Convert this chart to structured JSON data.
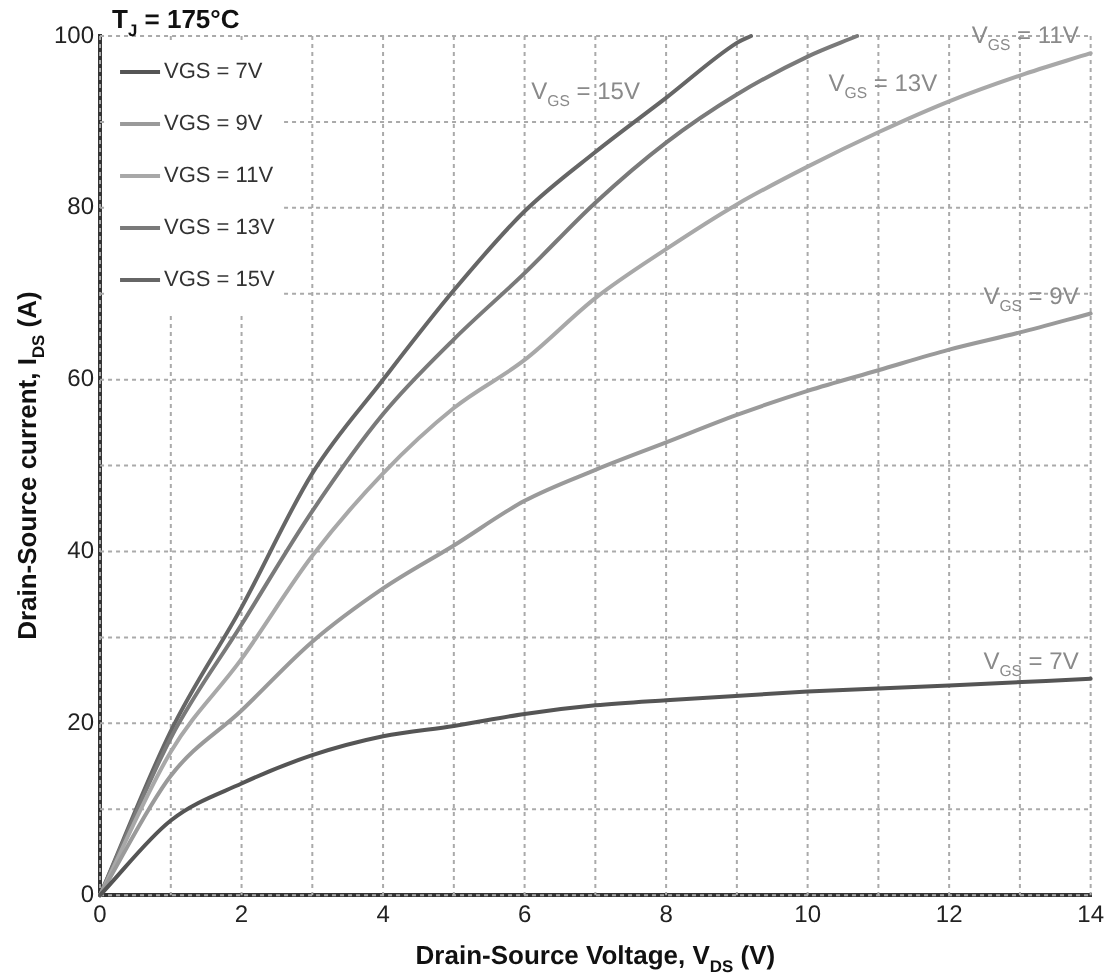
{
  "chart_data": {
    "type": "line",
    "xlabel": "Drain-Source Voltage, V$_{DS}$ (V)",
    "ylabel": "Drain-Source current, I$_{DS}$ (A)",
    "xlim": [
      0,
      14
    ],
    "ylim": [
      0,
      100
    ],
    "xticks": [
      0,
      {
        "value": 1,
        "label": null
      },
      2,
      {
        "value": 3,
        "label": null
      },
      4,
      {
        "value": 5,
        "label": null
      },
      6,
      {
        "value": 7,
        "label": null
      },
      8,
      {
        "value": 9,
        "label": null
      },
      10,
      {
        "value": 11,
        "label": null
      },
      12,
      {
        "value": 13,
        "label": null
      },
      14
    ],
    "yticks": [
      0,
      {
        "value": 10,
        "label": null
      },
      20,
      {
        "value": 30,
        "label": null
      },
      40,
      {
        "value": 50,
        "label": null
      },
      60,
      {
        "value": 70,
        "label": null
      },
      80,
      {
        "value": 90,
        "label": null
      },
      100
    ],
    "grid": true,
    "legend": "top left",
    "marker": "none",
    "line_style": "solid",
    "series": [
      {
        "name": "VGS = 7V",
        "color": "#555555",
        "x": [
          0,
          1,
          2,
          3,
          4,
          5,
          6,
          7,
          8,
          10,
          12,
          14
        ],
        "values": [
          0,
          8.7,
          13,
          16.3,
          18.5,
          19.7,
          21.1,
          22.1,
          22.7,
          23.7,
          24.4,
          25.2
        ]
      },
      {
        "name": "VGS = 9V",
        "color": "#9a9a9a",
        "x": [
          0,
          1,
          2,
          3,
          4,
          5,
          6,
          7,
          8,
          9,
          10,
          11,
          12,
          13,
          14
        ],
        "values": [
          0,
          13.9,
          21.5,
          29.5,
          35.7,
          40.7,
          45.9,
          49.5,
          52.7,
          55.9,
          58.7,
          61.1,
          63.5,
          65.5,
          67.7
        ]
      },
      {
        "name": "VGS = 11V",
        "color": "#a8a8a8",
        "x": [
          0,
          1,
          2,
          3,
          4,
          5,
          6,
          7,
          8,
          9,
          10,
          11,
          12,
          13,
          14
        ],
        "values": [
          0,
          16.7,
          27.5,
          39.5,
          49.1,
          56.7,
          62.3,
          69.5,
          75.2,
          80.4,
          84.8,
          88.8,
          92.4,
          95.4,
          98
        ]
      },
      {
        "name": "VGS = 13V",
        "color": "#7a7a7a",
        "x": [
          0,
          1,
          2,
          3,
          4,
          5,
          6,
          7,
          8,
          9,
          10,
          10.7
        ],
        "values": [
          0,
          18.3,
          31.5,
          44.7,
          56,
          64.7,
          72.4,
          80.6,
          87.6,
          93.2,
          97.6,
          100
        ]
      },
      {
        "name": "VGS = 15V",
        "color": "#666666",
        "x": [
          0,
          1,
          2,
          3,
          4,
          5,
          6,
          7,
          8,
          9,
          9.2
        ],
        "values": [
          0,
          19.1,
          33.5,
          49.1,
          60,
          70.4,
          79.6,
          86.5,
          92.8,
          99.2,
          100
        ]
      }
    ],
    "annotations": [
      "T$_{J}$ = 175°C",
      {
        "text": "V$_{GS}$ = 15V",
        "x": 7.8,
        "y": 91.5
      },
      {
        "text": "V$_{GS}$ = 13V",
        "x": 12,
        "y": 92.4
      },
      {
        "text": "V$_{GS}$ = 11V",
        "x": 14,
        "y": 98
      },
      {
        "text": "V$_{GS}$ = 9V",
        "x": 14,
        "y": 67.7
      },
      {
        "text": "V$_{GS}$ = 7V",
        "x": 14,
        "y": 25.2
      }
    ]
  }
}
